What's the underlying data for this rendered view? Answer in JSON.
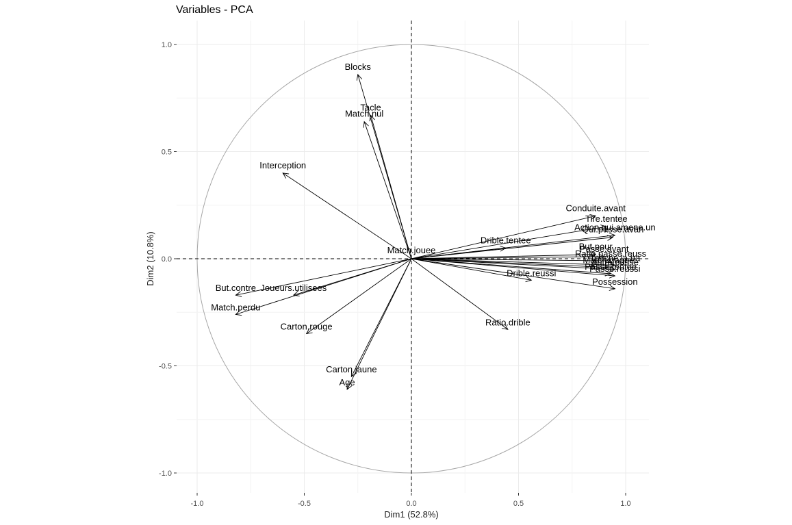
{
  "chart_data": {
    "type": "scatter",
    "subtype": "pca-variable-correlation-circle",
    "title": "Variables - PCA",
    "xlabel": "Dim1 (52.8%)",
    "ylabel": "Dim2 (10.8%)",
    "xlim": [
      -1.1,
      1.1
    ],
    "ylim": [
      -1.1,
      1.1
    ],
    "xticks": [
      -1.0,
      -0.5,
      0.0,
      0.5,
      1.0
    ],
    "yticks": [
      -1.0,
      -0.5,
      0.0,
      0.5,
      1.0
    ],
    "xtick_labels": [
      "-1.0",
      "-0.5",
      "0.0",
      "0.5",
      "1.0"
    ],
    "ytick_labels": [
      "-1.0",
      "-0.5",
      "0.0",
      "0.5",
      "1.0"
    ],
    "grid": true,
    "unit_circle": true,
    "zero_reference_lines": "dashed",
    "arrow_color": "#000000",
    "circle_color": "#a6a6a6",
    "variables": [
      {
        "name": "Blocks",
        "x": -0.25,
        "y": 0.86
      },
      {
        "name": "Tacle",
        "x": -0.19,
        "y": 0.67
      },
      {
        "name": "Match.nul",
        "x": -0.22,
        "y": 0.64
      },
      {
        "name": "Interception",
        "x": -0.6,
        "y": 0.4
      },
      {
        "name": "Match.jouee",
        "x": 0.0,
        "y": 0.0
      },
      {
        "name": "Drible.tentee",
        "x": 0.44,
        "y": 0.05
      },
      {
        "name": "Conduite.avant",
        "x": 0.86,
        "y": 0.2
      },
      {
        "name": "Tire.tentee",
        "x": 0.91,
        "y": 0.15
      },
      {
        "name": "Action.qui.amene.un",
        "x": 0.95,
        "y": 0.11
      },
      {
        "name": "Qui.passe.avan",
        "x": 0.94,
        "y": 0.1
      },
      {
        "name": "But.pour",
        "x": 0.86,
        "y": 0.02
      },
      {
        "name": "Passe.avant",
        "x": 0.9,
        "y": 0.01
      },
      {
        "name": "Ratio.passe.reuss",
        "x": 0.93,
        "y": -0.01
      },
      {
        "name": "Touche.la.ba",
        "x": 0.95,
        "y": -0.03
      },
      {
        "name": "Match.gagne",
        "x": 0.92,
        "y": -0.04
      },
      {
        "name": "Autre.passe",
        "x": 0.95,
        "y": -0.05
      },
      {
        "name": "Passe.tentee",
        "x": 0.93,
        "y": -0.07
      },
      {
        "name": "Passe.reussi",
        "x": 0.95,
        "y": -0.08
      },
      {
        "name": "Possession",
        "x": 0.95,
        "y": -0.14
      },
      {
        "name": "Drible.reussi",
        "x": 0.56,
        "y": -0.1
      },
      {
        "name": "Ratio.drible",
        "x": 0.45,
        "y": -0.33
      },
      {
        "name": "But.contre",
        "x": -0.82,
        "y": -0.17
      },
      {
        "name": "Joueurs.utilisees",
        "x": -0.55,
        "y": -0.17
      },
      {
        "name": "Match.perdu",
        "x": -0.82,
        "y": -0.26
      },
      {
        "name": "Carton.rouge",
        "x": -0.49,
        "y": -0.35
      },
      {
        "name": "Carton.jaune",
        "x": -0.28,
        "y": -0.55
      },
      {
        "name": "Age",
        "x": -0.3,
        "y": -0.61
      }
    ]
  }
}
